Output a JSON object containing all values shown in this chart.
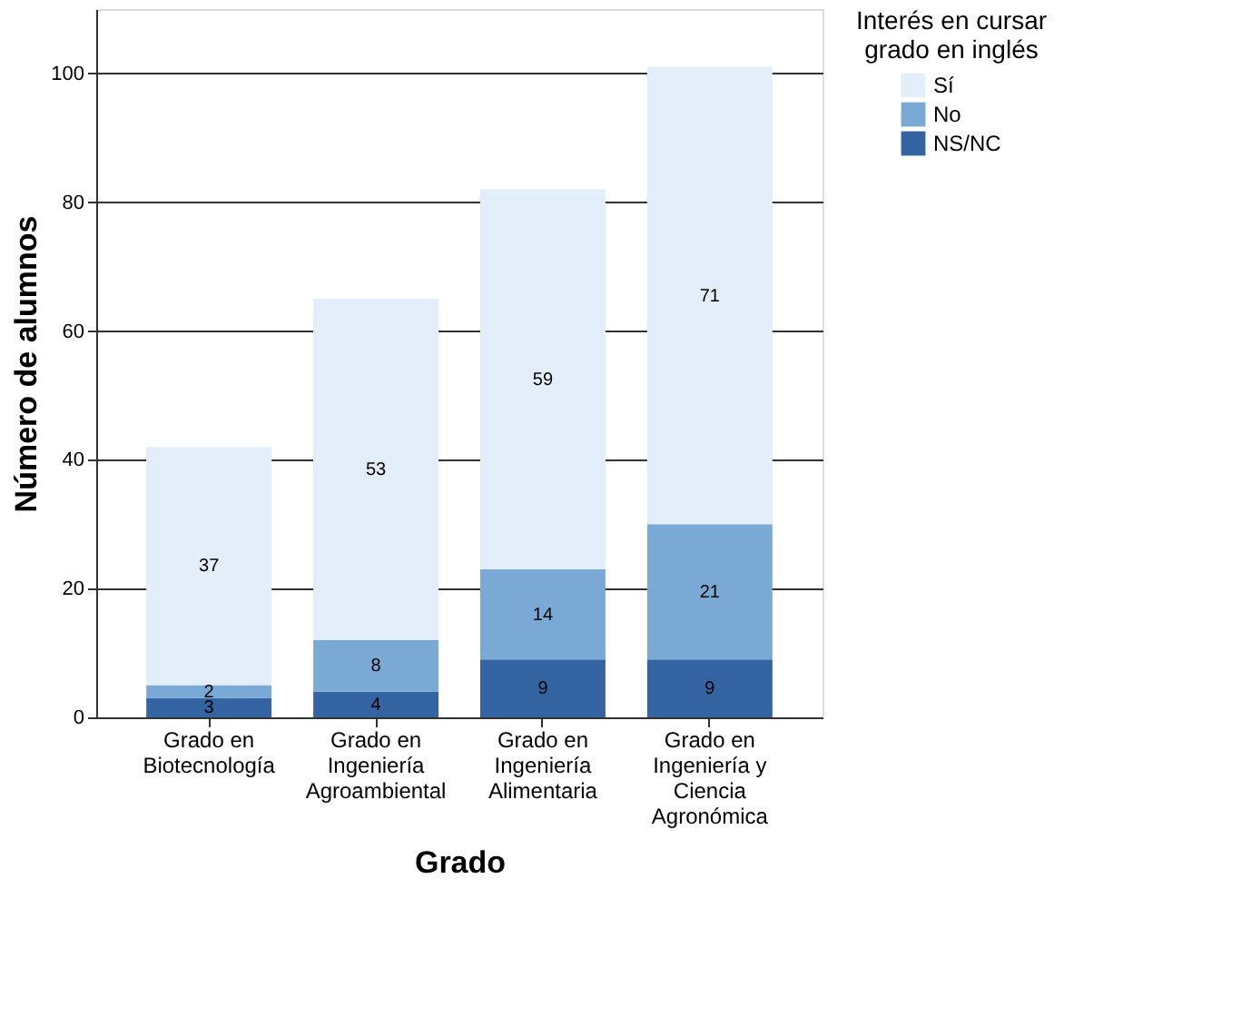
{
  "chart_data": {
    "type": "bar",
    "stacked": true,
    "xlabel": "Grado",
    "ylabel": "Número de alumnos",
    "legend_title": "Interés en cursar grado en inglés",
    "categories": [
      "Grado en Biotecnología",
      "Grado en Ingeniería Agroambiental",
      "Grado en Ingeniería Alimentaria",
      "Grado en Ingeniería y Ciencia Agronómica"
    ],
    "series": [
      {
        "name": "NS/NC",
        "color": "#3465a2",
        "values": [
          3,
          4,
          9,
          9
        ]
      },
      {
        "name": "No",
        "color": "#7aa9d6",
        "values": [
          2,
          8,
          14,
          21
        ]
      },
      {
        "name": "Sí",
        "color": "#e3eefa",
        "values": [
          37,
          53,
          59,
          71
        ]
      }
    ],
    "ylim": [
      0,
      110
    ],
    "yticks": [
      0,
      20,
      40,
      60,
      80,
      100
    ],
    "grid": "y",
    "legend": "top right",
    "data_labels": true
  }
}
